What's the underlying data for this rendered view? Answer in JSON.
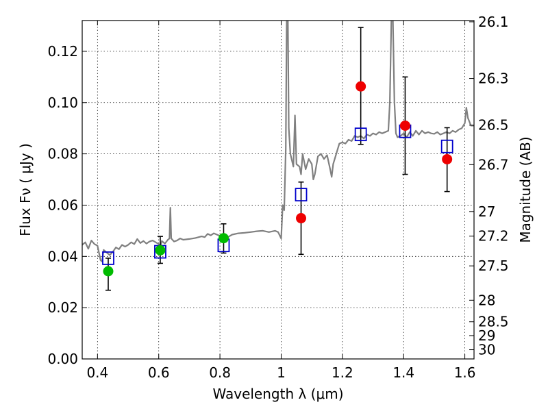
{
  "chart_data": {
    "type": "scatter",
    "title": "",
    "xlabel": "Wavelength  λ (μm)",
    "ylabel": "Flux  Fν  ( μJy )",
    "y2label": "Magnitude (AB)",
    "xlim": [
      0.35,
      1.63
    ],
    "ylim": [
      0.0,
      0.132
    ],
    "grid": true,
    "xticks": [
      0.4,
      0.6,
      0.8,
      1.0,
      1.2,
      1.4,
      1.6
    ],
    "xtick_labels": [
      "0.4",
      "0.6",
      "0.8",
      "1",
      "1.2",
      "1.4",
      "1.6"
    ],
    "yticks": [
      0.0,
      0.02,
      0.04,
      0.06,
      0.08,
      0.1,
      0.12
    ],
    "ytick_labels": [
      "0.00",
      "0.02",
      "0.04",
      "0.06",
      "0.08",
      "0.10",
      "0.12"
    ],
    "mag_ticks": [
      {
        "label": "26.1",
        "flux": 0.1315
      },
      {
        "label": "26.3",
        "flux": 0.1094
      },
      {
        "label": "26.5",
        "flux": 0.0912
      },
      {
        "label": "26.7",
        "flux": 0.0758
      },
      {
        "label": "27",
        "flux": 0.0575
      },
      {
        "label": "27.2",
        "flux": 0.0479
      },
      {
        "label": "27.5",
        "flux": 0.0363
      },
      {
        "label": "28",
        "flux": 0.0229
      },
      {
        "label": "28.5",
        "flux": 0.0145
      },
      {
        "label": "29",
        "flux": 0.0091
      },
      {
        "label": "30",
        "flux": 0.0036
      }
    ],
    "model_spectrum": {
      "color": "#808080",
      "points": [
        [
          0.35,
          0.0445
        ],
        [
          0.36,
          0.0455
        ],
        [
          0.37,
          0.043
        ],
        [
          0.38,
          0.0462
        ],
        [
          0.39,
          0.0448
        ],
        [
          0.4,
          0.0442
        ],
        [
          0.41,
          0.0385
        ],
        [
          0.415,
          0.038
        ],
        [
          0.42,
          0.0425
        ],
        [
          0.43,
          0.0415
        ],
        [
          0.44,
          0.0405
        ],
        [
          0.45,
          0.0418
        ],
        [
          0.46,
          0.0435
        ],
        [
          0.47,
          0.0428
        ],
        [
          0.48,
          0.0445
        ],
        [
          0.49,
          0.0438
        ],
        [
          0.5,
          0.0445
        ],
        [
          0.51,
          0.0455
        ],
        [
          0.52,
          0.0448
        ],
        [
          0.53,
          0.0468
        ],
        [
          0.54,
          0.0452
        ],
        [
          0.55,
          0.046
        ],
        [
          0.56,
          0.045
        ],
        [
          0.57,
          0.0458
        ],
        [
          0.58,
          0.0462
        ],
        [
          0.59,
          0.0455
        ],
        [
          0.6,
          0.0448
        ],
        [
          0.605,
          0.0435
        ],
        [
          0.61,
          0.046
        ],
        [
          0.62,
          0.045
        ],
        [
          0.63,
          0.0465
        ],
        [
          0.635,
          0.047
        ],
        [
          0.638,
          0.059
        ],
        [
          0.641,
          0.047
        ],
        [
          0.65,
          0.0458
        ],
        [
          0.66,
          0.0462
        ],
        [
          0.67,
          0.047
        ],
        [
          0.68,
          0.0465
        ],
        [
          0.7,
          0.0468
        ],
        [
          0.72,
          0.0472
        ],
        [
          0.74,
          0.0478
        ],
        [
          0.75,
          0.0475
        ],
        [
          0.76,
          0.0488
        ],
        [
          0.77,
          0.0482
        ],
        [
          0.78,
          0.049
        ],
        [
          0.79,
          0.0485
        ],
        [
          0.8,
          0.048
        ],
        [
          0.81,
          0.0478
        ],
        [
          0.82,
          0.047
        ],
        [
          0.83,
          0.0478
        ],
        [
          0.84,
          0.0485
        ],
        [
          0.86,
          0.049
        ],
        [
          0.88,
          0.0492
        ],
        [
          0.9,
          0.0495
        ],
        [
          0.92,
          0.0498
        ],
        [
          0.94,
          0.05
        ],
        [
          0.96,
          0.0495
        ],
        [
          0.98,
          0.05
        ],
        [
          0.99,
          0.0495
        ],
        [
          1.0,
          0.047
        ],
        [
          1.005,
          0.06
        ],
        [
          1.01,
          0.058
        ],
        [
          1.015,
          0.082
        ],
        [
          1.018,
          0.132
        ],
        [
          1.022,
          0.132
        ],
        [
          1.025,
          0.09
        ],
        [
          1.03,
          0.08
        ],
        [
          1.04,
          0.075
        ],
        [
          1.045,
          0.095
        ],
        [
          1.05,
          0.076
        ],
        [
          1.06,
          0.075
        ],
        [
          1.065,
          0.072
        ],
        [
          1.07,
          0.08
        ],
        [
          1.08,
          0.074
        ],
        [
          1.09,
          0.078
        ],
        [
          1.1,
          0.076
        ],
        [
          1.105,
          0.07
        ],
        [
          1.11,
          0.072
        ],
        [
          1.12,
          0.079
        ],
        [
          1.13,
          0.08
        ],
        [
          1.14,
          0.078
        ],
        [
          1.15,
          0.0795
        ],
        [
          1.16,
          0.074
        ],
        [
          1.165,
          0.071
        ],
        [
          1.17,
          0.076
        ],
        [
          1.18,
          0.08
        ],
        [
          1.19,
          0.084
        ],
        [
          1.2,
          0.0845
        ],
        [
          1.21,
          0.084
        ],
        [
          1.22,
          0.0855
        ],
        [
          1.23,
          0.085
        ],
        [
          1.24,
          0.087
        ],
        [
          1.25,
          0.0865
        ],
        [
          1.26,
          0.087
        ],
        [
          1.27,
          0.086
        ],
        [
          1.28,
          0.0875
        ],
        [
          1.29,
          0.087
        ],
        [
          1.3,
          0.088
        ],
        [
          1.31,
          0.0875
        ],
        [
          1.32,
          0.0885
        ],
        [
          1.33,
          0.088
        ],
        [
          1.34,
          0.0885
        ],
        [
          1.35,
          0.089
        ],
        [
          1.355,
          0.1
        ],
        [
          1.36,
          0.132
        ],
        [
          1.365,
          0.132
        ],
        [
          1.37,
          0.1
        ],
        [
          1.375,
          0.088
        ],
        [
          1.38,
          0.0865
        ],
        [
          1.39,
          0.087
        ],
        [
          1.4,
          0.088
        ],
        [
          1.41,
          0.0865
        ],
        [
          1.42,
          0.0885
        ],
        [
          1.43,
          0.087
        ],
        [
          1.44,
          0.089
        ],
        [
          1.45,
          0.0875
        ],
        [
          1.46,
          0.089
        ],
        [
          1.47,
          0.088
        ],
        [
          1.48,
          0.0885
        ],
        [
          1.49,
          0.088
        ],
        [
          1.5,
          0.0878
        ],
        [
          1.51,
          0.0885
        ],
        [
          1.52,
          0.0875
        ],
        [
          1.53,
          0.088
        ],
        [
          1.54,
          0.0885
        ],
        [
          1.55,
          0.088
        ],
        [
          1.56,
          0.089
        ],
        [
          1.57,
          0.0885
        ],
        [
          1.58,
          0.0895
        ],
        [
          1.59,
          0.09
        ],
        [
          1.6,
          0.092
        ],
        [
          1.605,
          0.098
        ],
        [
          1.61,
          0.094
        ],
        [
          1.62,
          0.091
        ],
        [
          1.63,
          0.091
        ]
      ]
    },
    "series": [
      {
        "marker": "open-square",
        "color": "#0000cc",
        "points": [
          {
            "x": 0.435,
            "y": 0.0393
          },
          {
            "x": 0.605,
            "y": 0.0418
          },
          {
            "x": 0.812,
            "y": 0.0443
          },
          {
            "x": 1.065,
            "y": 0.0641
          },
          {
            "x": 1.26,
            "y": 0.0876
          },
          {
            "x": 1.405,
            "y": 0.0888
          },
          {
            "x": 1.542,
            "y": 0.0829
          }
        ]
      },
      {
        "marker": "filled-circle",
        "color": "#00bb00",
        "points": [
          {
            "x": 0.435,
            "y": 0.0342,
            "yerr_low": 0.0268,
            "yerr_high": 0.0393
          },
          {
            "x": 0.605,
            "y": 0.0424,
            "yerr_low": 0.0373,
            "yerr_high": 0.0478
          },
          {
            "x": 0.812,
            "y": 0.0471,
            "yerr_low": 0.0413,
            "yerr_high": 0.0527
          }
        ]
      },
      {
        "marker": "filled-circle",
        "color": "#ee0000",
        "points": [
          {
            "x": 1.065,
            "y": 0.0549,
            "yerr_low": 0.0408,
            "yerr_high": 0.069
          },
          {
            "x": 1.26,
            "y": 0.1063,
            "yerr_low": 0.0837,
            "yerr_high": 0.1293
          },
          {
            "x": 1.405,
            "y": 0.091,
            "yerr_low": 0.072,
            "yerr_high": 0.11
          },
          {
            "x": 1.542,
            "y": 0.0779,
            "yerr_low": 0.0653,
            "yerr_high": 0.0902
          }
        ]
      }
    ]
  }
}
